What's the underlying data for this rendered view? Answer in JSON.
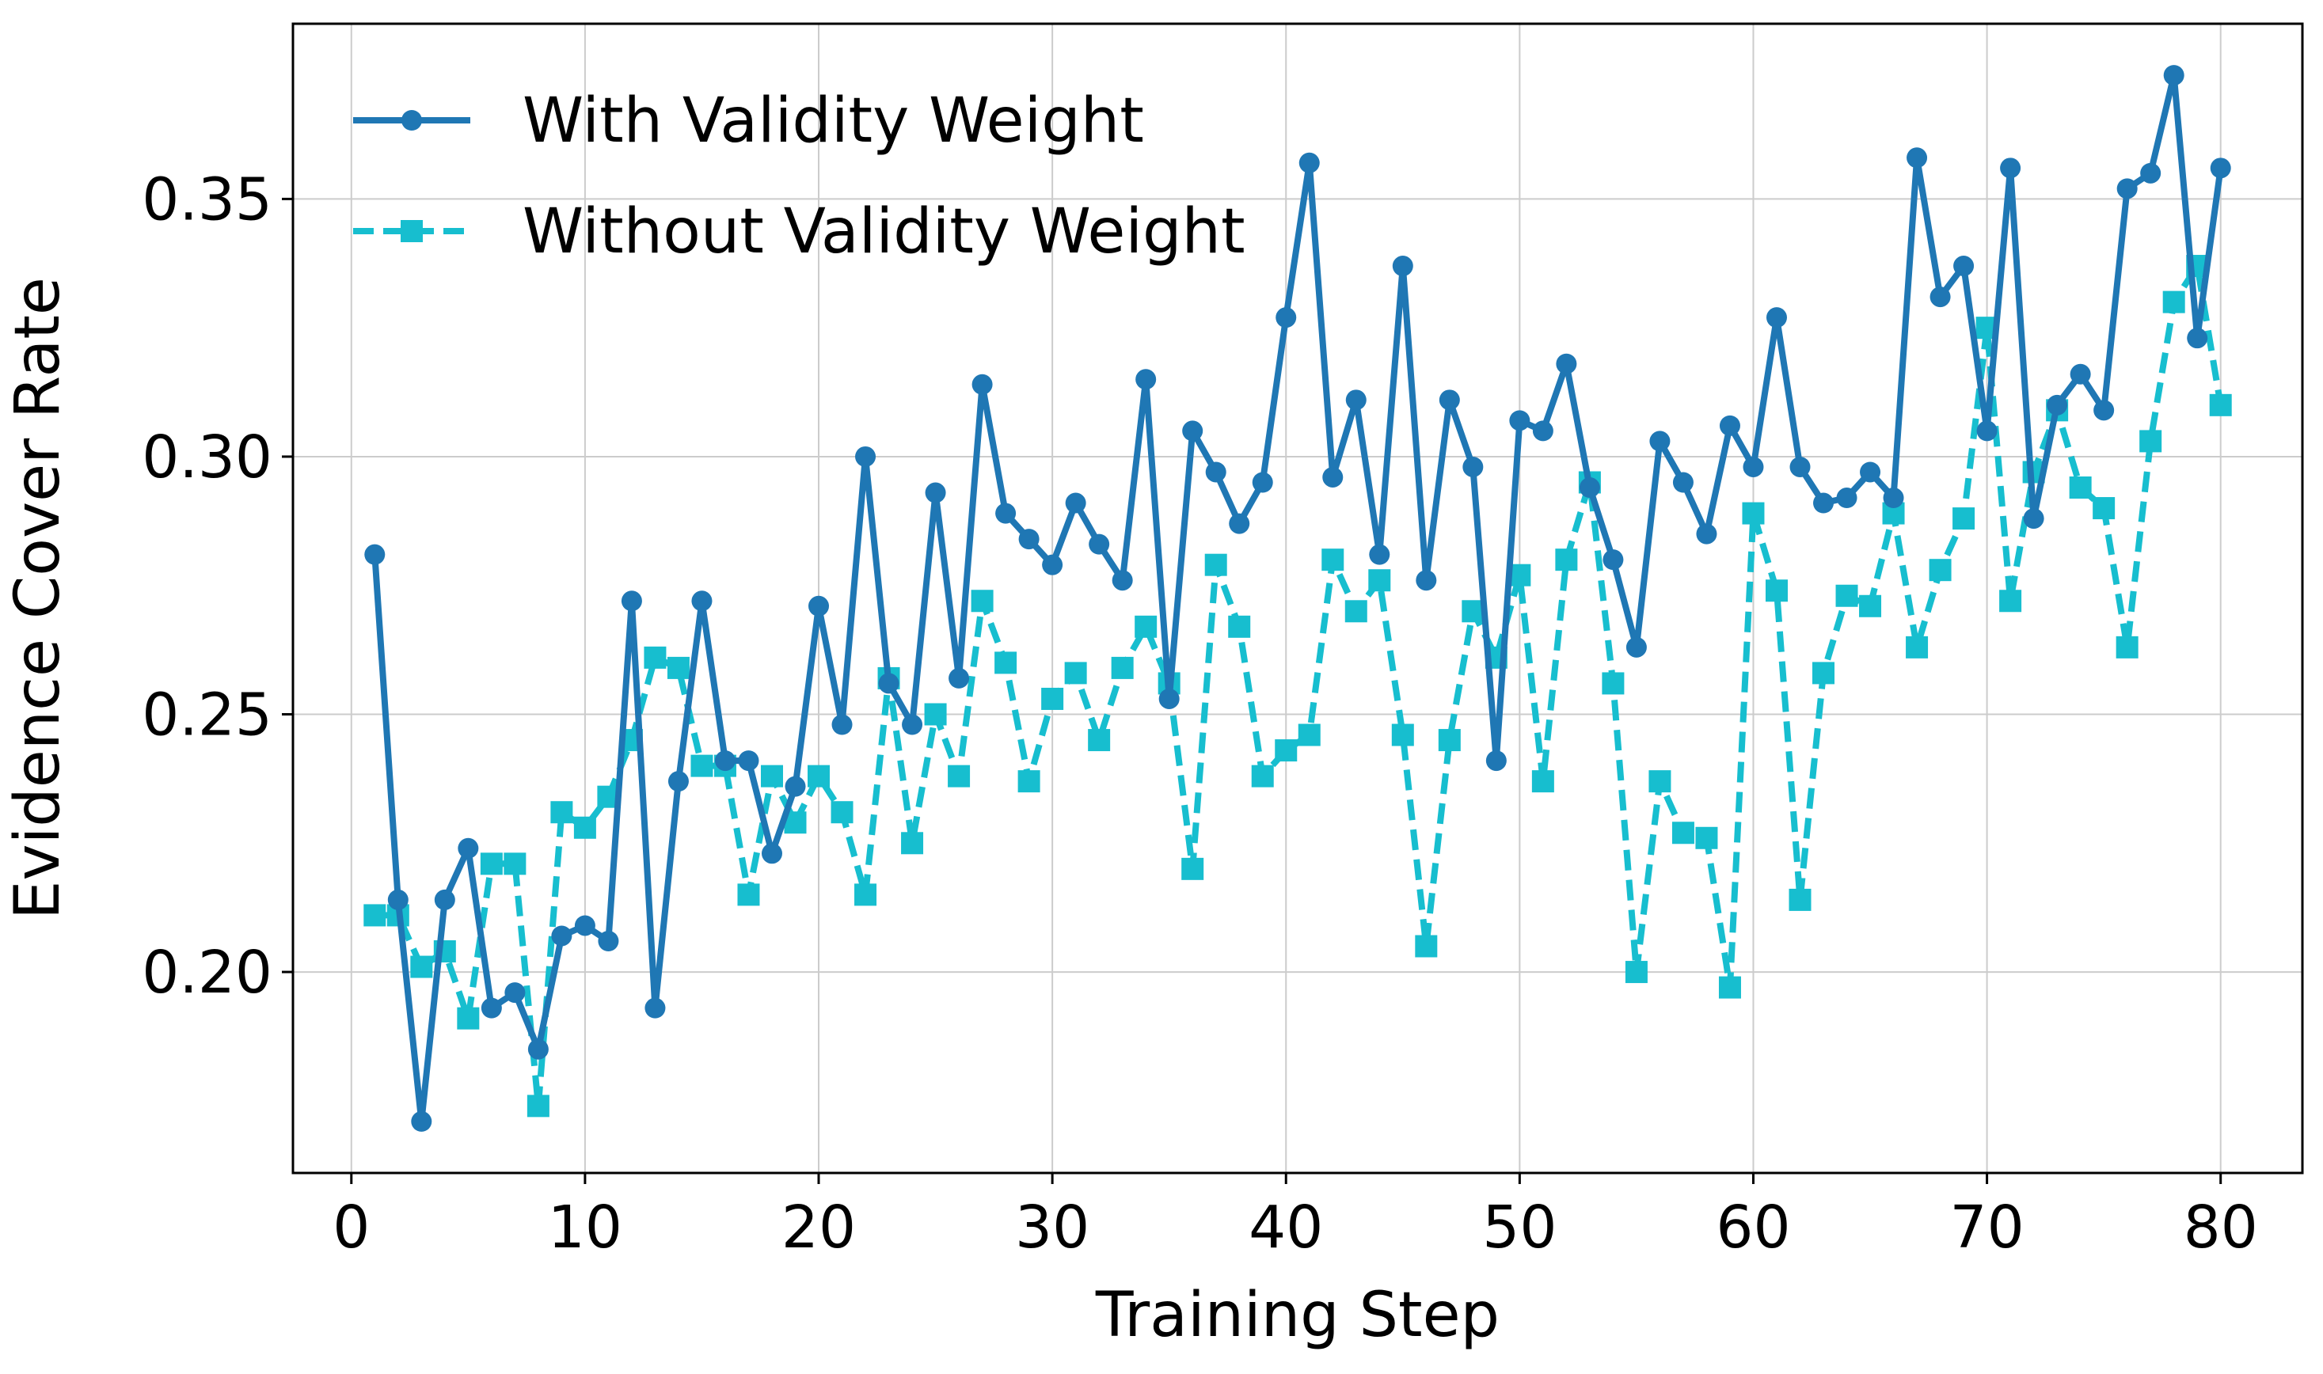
{
  "chart_data": {
    "type": "line",
    "title": "",
    "xlabel": "Training Step",
    "ylabel": "Evidence Cover Rate",
    "xlim": [
      -2.5,
      83.5
    ],
    "ylim": [
      0.161,
      0.384
    ],
    "xticks": [
      0,
      10,
      20,
      30,
      40,
      50,
      60,
      70,
      80
    ],
    "xtick_labels": [
      "0",
      "10",
      "20",
      "30",
      "40",
      "50",
      "60",
      "70",
      "80"
    ],
    "yticks": [
      0.2,
      0.25,
      0.3,
      0.35
    ],
    "ytick_labels": [
      "0.20",
      "0.25",
      "0.30",
      "0.35"
    ],
    "grid": true,
    "legend_position": "top-left",
    "x": [
      1,
      2,
      3,
      4,
      5,
      6,
      7,
      8,
      9,
      10,
      11,
      12,
      13,
      14,
      15,
      16,
      17,
      18,
      19,
      20,
      21,
      22,
      23,
      24,
      25,
      26,
      27,
      28,
      29,
      30,
      31,
      32,
      33,
      34,
      35,
      36,
      37,
      38,
      39,
      40,
      41,
      42,
      43,
      44,
      45,
      46,
      47,
      48,
      49,
      50,
      51,
      52,
      53,
      54,
      55,
      56,
      57,
      58,
      59,
      60,
      61,
      62,
      63,
      64,
      65,
      66,
      67,
      68,
      69,
      70,
      71,
      72,
      73,
      74,
      75,
      76,
      77,
      78,
      79,
      80
    ],
    "series": [
      {
        "name": "With Validity Weight",
        "color": "#1f77b4",
        "line_style": "solid",
        "marker": "circle",
        "values": [
          0.281,
          0.214,
          0.171,
          0.214,
          0.224,
          0.193,
          0.196,
          0.185,
          0.207,
          0.209,
          0.206,
          0.272,
          0.193,
          0.237,
          0.272,
          0.241,
          0.241,
          0.223,
          0.236,
          0.271,
          0.248,
          0.3,
          0.256,
          0.248,
          0.293,
          0.257,
          0.314,
          0.289,
          0.284,
          0.279,
          0.291,
          0.283,
          0.276,
          0.315,
          0.253,
          0.305,
          0.297,
          0.287,
          0.295,
          0.327,
          0.357,
          0.296,
          0.311,
          0.281,
          0.337,
          0.276,
          0.311,
          0.298,
          0.241,
          0.307,
          0.305,
          0.318,
          0.294,
          0.28,
          0.263,
          0.303,
          0.295,
          0.285,
          0.306,
          0.298,
          0.327,
          0.298,
          0.291,
          0.292,
          0.297,
          0.292,
          0.358,
          0.331,
          0.337,
          0.305,
          0.356,
          0.288,
          0.31,
          0.316,
          0.309,
          0.352,
          0.355,
          0.374,
          0.323,
          0.356
        ]
      },
      {
        "name": "Without Validity Weight",
        "color": "#17becf",
        "line_style": "dashed",
        "marker": "square",
        "values": [
          0.211,
          0.211,
          0.201,
          0.204,
          0.191,
          0.221,
          0.221,
          0.174,
          0.231,
          0.228,
          0.234,
          0.245,
          0.261,
          0.259,
          0.24,
          0.24,
          0.215,
          0.238,
          0.229,
          0.238,
          0.231,
          0.215,
          0.257,
          0.225,
          0.25,
          0.238,
          0.272,
          0.26,
          0.237,
          0.253,
          0.258,
          0.245,
          0.259,
          0.267,
          0.256,
          0.22,
          0.279,
          0.267,
          0.238,
          0.243,
          0.246,
          0.28,
          0.27,
          0.276,
          0.246,
          0.205,
          0.245,
          0.27,
          0.261,
          0.277,
          0.237,
          0.28,
          0.295,
          0.256,
          0.2,
          0.237,
          0.227,
          0.226,
          0.197,
          0.289,
          0.274,
          0.214,
          0.258,
          0.273,
          0.271,
          0.289,
          0.263,
          0.278,
          0.288,
          0.325,
          0.272,
          0.297,
          0.309,
          0.294,
          0.29,
          0.263,
          0.303,
          0.33,
          0.337,
          0.31
        ]
      }
    ]
  }
}
